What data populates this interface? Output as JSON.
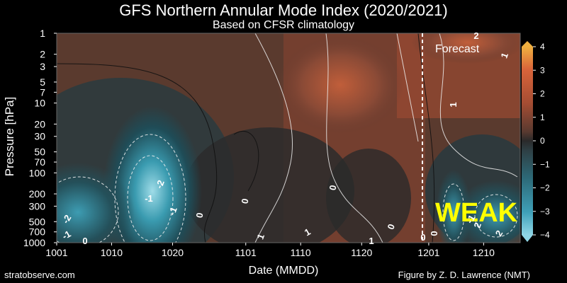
{
  "chart_data": {
    "type": "heatmap",
    "title": "GFS Northern Annular Mode Index (2020/2021)",
    "subtitle": "Based on CFSR climatology",
    "xlabel": "Date (MMDD)",
    "ylabel": "Pressure [hPa]",
    "x_ticks": [
      "1001",
      "1010",
      "1020",
      "1101",
      "1110",
      "1120",
      "1201",
      "1210"
    ],
    "y_ticks": [
      "1",
      "2",
      "3",
      "5",
      "7",
      "10",
      "20",
      "30",
      "50",
      "70",
      "100",
      "200",
      "300",
      "500",
      "700",
      "1000"
    ],
    "y_scale": "log",
    "ylim": [
      1000,
      1
    ],
    "colorbar": {
      "ticks": [
        "4",
        "3",
        "2",
        "1",
        "0",
        "−1",
        "−2",
        "−3",
        "−4"
      ],
      "range": [
        -4,
        4
      ]
    },
    "forecast_label": "Forecast",
    "status_label": "WEAK",
    "contour_labels": [
      "-2",
      "-1",
      "-2",
      "-1",
      "0",
      "0",
      "0",
      "0",
      "0",
      "1",
      "1",
      "2",
      "1",
      "1",
      "0",
      "2",
      "1",
      "2",
      "-1",
      "0",
      "-1"
    ],
    "colors": {
      "positive": "#c8603a",
      "negative": "#3fa0b8",
      "neutral": "#2a2a2a",
      "status": "#ffff00"
    }
  },
  "credits": {
    "left": "stratobserve.com",
    "right": "Figure by Z. D. Lawrence (NMT)"
  }
}
